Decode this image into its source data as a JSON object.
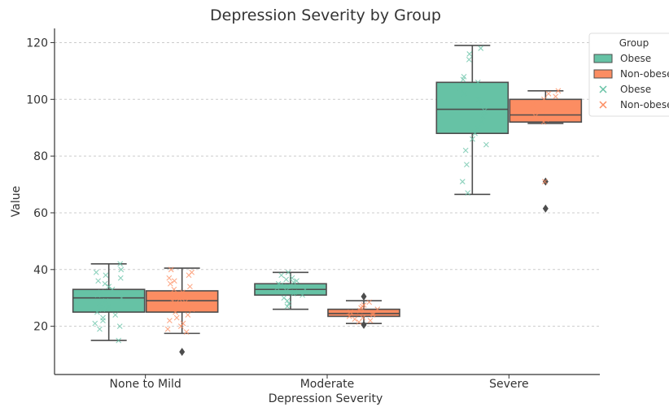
{
  "chart_data": {
    "type": "box",
    "title": "Depression Severity by Group",
    "xlabel": "Depression Severity",
    "ylabel": "Value",
    "categories": [
      "None to Mild",
      "Moderate",
      "Severe"
    ],
    "ylim": [
      3,
      125
    ],
    "yticks": [
      20,
      40,
      60,
      80,
      100,
      120
    ],
    "grid": true,
    "legend": {
      "title": "Group",
      "placement": "top-right",
      "entries": [
        {
          "label": "Obese",
          "marker": "box"
        },
        {
          "label": "Non-obese",
          "marker": "box"
        },
        {
          "label": "Obese",
          "marker": "x"
        },
        {
          "label": "Non-obese",
          "marker": "x"
        }
      ]
    },
    "colors": {
      "Obese": "#66c2a5",
      "Non-obese": "#fc8d62",
      "edge": "#4d4d4d"
    },
    "series": [
      {
        "name": "Obese",
        "boxes": [
          {
            "category": "None to Mild",
            "whisker_low": 15,
            "q1": 25,
            "median": 30,
            "q3": 33,
            "whisker_high": 42,
            "outliers": []
          },
          {
            "category": "Moderate",
            "whisker_low": 26,
            "q1": 31,
            "median": 33,
            "q3": 35,
            "whisker_high": 39,
            "outliers": []
          },
          {
            "category": "Severe",
            "whisker_low": 66.5,
            "q1": 88,
            "median": 96.5,
            "q3": 106,
            "whisker_high": 119,
            "outliers": []
          }
        ],
        "points": [
          [
            42,
            40,
            39,
            38,
            37,
            36,
            35,
            34,
            33,
            32,
            31,
            30,
            29,
            28,
            27,
            26,
            25,
            24,
            23,
            22,
            21,
            20,
            19,
            15
          ],
          [
            39,
            38,
            37,
            36.5,
            36,
            35.5,
            35,
            34.5,
            34,
            33.5,
            33,
            32.5,
            32,
            31.5,
            31,
            30,
            29,
            28,
            27
          ],
          [
            118,
            116,
            114,
            108,
            107,
            106,
            104,
            102,
            100,
            98,
            96,
            94,
            92,
            90,
            88,
            86,
            84,
            82,
            77,
            71,
            67
          ]
        ]
      },
      {
        "name": "Non-obese",
        "boxes": [
          {
            "category": "None to Mild",
            "whisker_low": 17.5,
            "q1": 25,
            "median": 29,
            "q3": 32.5,
            "whisker_high": 40.5,
            "outliers": [
              11
            ]
          },
          {
            "category": "Moderate",
            "whisker_low": 21,
            "q1": 23.5,
            "median": 24.5,
            "q3": 26,
            "whisker_high": 29,
            "outliers": [
              30.5,
              20.5
            ]
          },
          {
            "category": "Severe",
            "whisker_low": 91.5,
            "q1": 92,
            "median": 94.5,
            "q3": 100,
            "whisker_high": 103,
            "outliers": [
              71,
              61.5
            ]
          }
        ],
        "points": [
          [
            40,
            39,
            38,
            37,
            36,
            35,
            34,
            33,
            32,
            31,
            30,
            29.5,
            29,
            28.5,
            28,
            27,
            26,
            25,
            24,
            23,
            22,
            21,
            20,
            19,
            18
          ],
          [
            28.5,
            27.5,
            27,
            26.5,
            26,
            25.5,
            25,
            24.5,
            24,
            23.5,
            23,
            22.5,
            22,
            21.5
          ],
          [
            103,
            102,
            101,
            100,
            98,
            96,
            94,
            93,
            92,
            71
          ]
        ]
      }
    ]
  }
}
